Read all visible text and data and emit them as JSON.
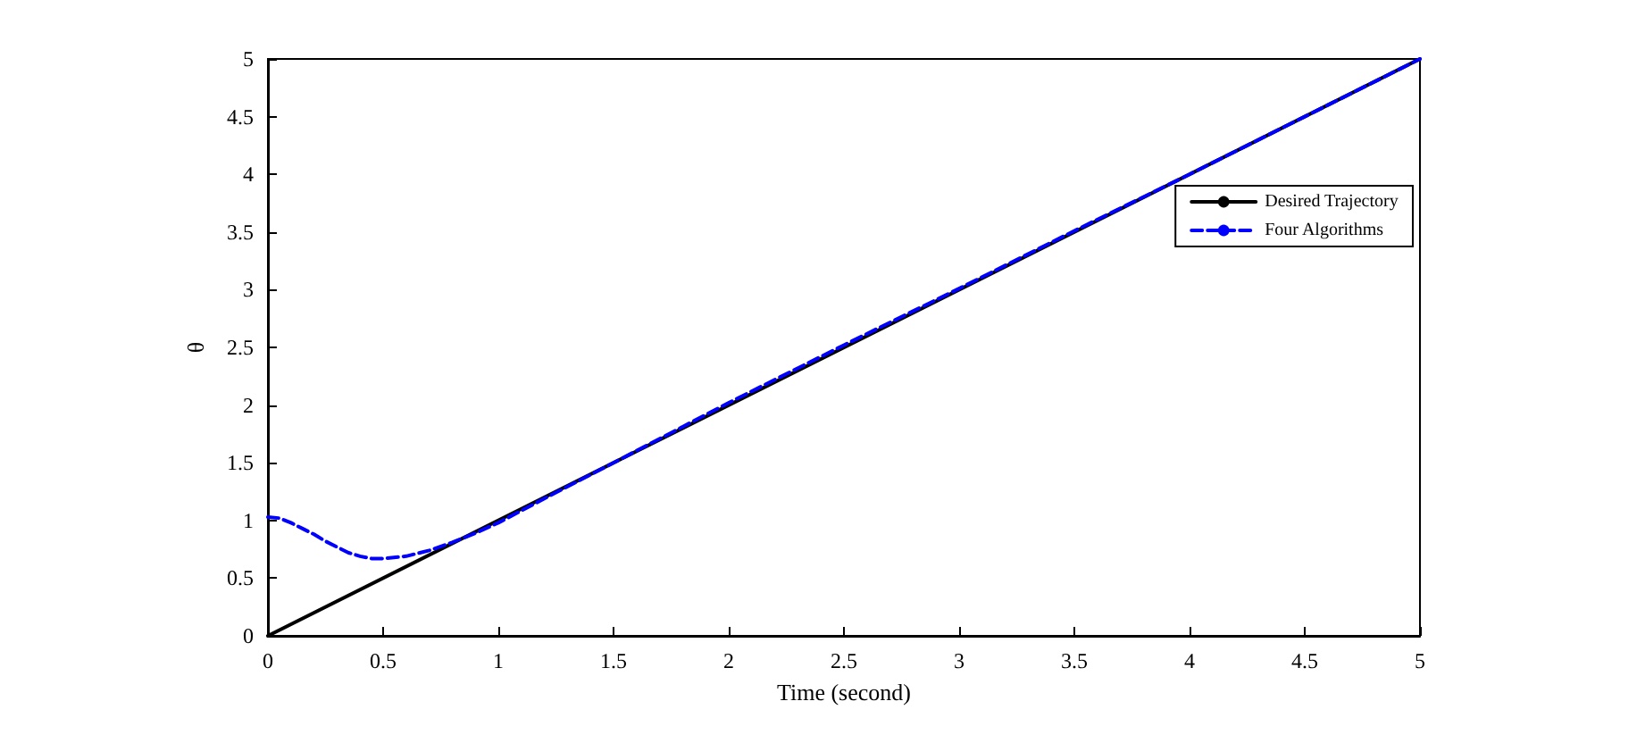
{
  "chart_data": {
    "type": "line",
    "xlabel": "Time (second)",
    "ylabel": "θ",
    "xlim": [
      0,
      5
    ],
    "ylim": [
      0,
      5
    ],
    "xticks": [
      0,
      0.5,
      1,
      1.5,
      2,
      2.5,
      3,
      3.5,
      4,
      4.5,
      5
    ],
    "yticks": [
      0,
      0.5,
      1,
      1.5,
      2,
      2.5,
      3,
      3.5,
      4,
      4.5,
      5
    ],
    "grid": false,
    "legend": "top right",
    "marker": "none",
    "series": [
      {
        "name": "Desired Trajectory",
        "color": "#000000",
        "line_style": "solid",
        "x": [
          0,
          5
        ],
        "values": [
          0,
          5
        ]
      },
      {
        "name": "Four Algorithms",
        "color": "#0000ff",
        "line_style": "dashed",
        "x": [
          0,
          0.05,
          0.1,
          0.15,
          0.2,
          0.25,
          0.3,
          0.35,
          0.4,
          0.45,
          0.5,
          0.6,
          0.7,
          0.8,
          0.9,
          1,
          1.2,
          1.5,
          2,
          2.5,
          3,
          3.5,
          4,
          4.5,
          5
        ],
        "values": [
          1.03,
          1.02,
          0.98,
          0.93,
          0.88,
          0.82,
          0.77,
          0.72,
          0.69,
          0.67,
          0.67,
          0.69,
          0.74,
          0.81,
          0.89,
          0.98,
          1.19,
          1.5,
          2.02,
          2.52,
          3.01,
          3.51,
          4.0,
          4.5,
          5
        ]
      }
    ]
  }
}
